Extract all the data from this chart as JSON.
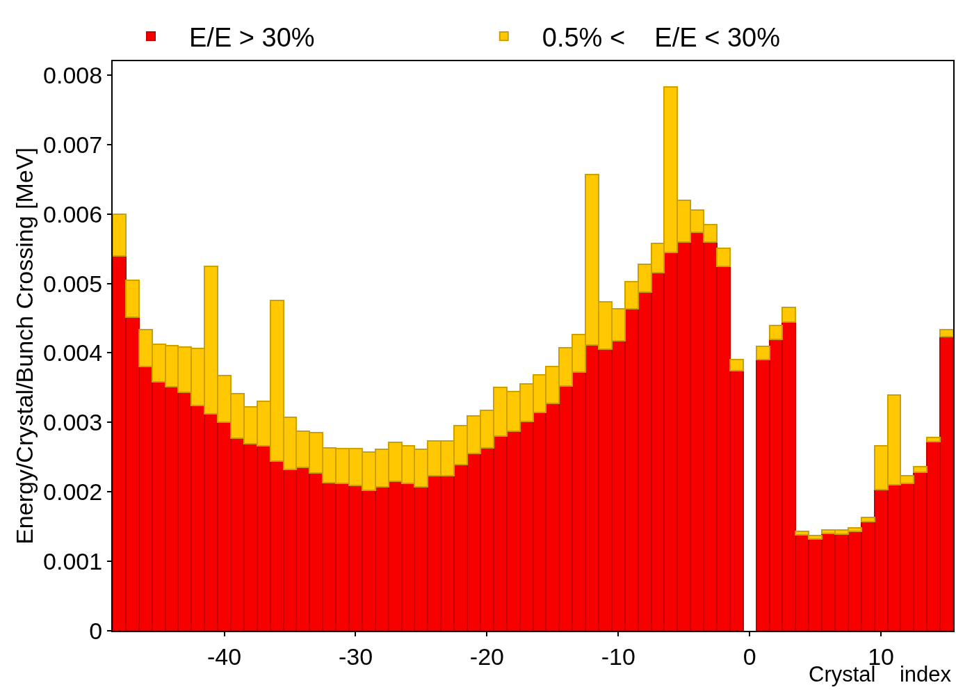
{
  "chart_data": {
    "type": "bar",
    "stacked": true,
    "xlabel": "Crystal    index",
    "ylabel": "Energy/Crystal/Bunch Crossing [MeV]",
    "x": [
      -48,
      -47,
      -46,
      -45,
      -44,
      -43,
      -42,
      -41,
      -40,
      -39,
      -38,
      -37,
      -36,
      -35,
      -34,
      -33,
      -32,
      -31,
      -30,
      -29,
      -28,
      -27,
      -26,
      -25,
      -24,
      -23,
      -22,
      -21,
      -20,
      -19,
      -18,
      -17,
      -16,
      -15,
      -14,
      -13,
      -12,
      -11,
      -10,
      -9,
      -8,
      -7,
      -6,
      -5,
      -4,
      -3,
      -2,
      -1,
      0,
      1,
      2,
      3,
      4,
      5,
      6,
      7,
      8,
      9,
      10,
      11,
      12,
      13,
      14,
      15
    ],
    "series": [
      {
        "name": "E/E > 30%",
        "color": "#f70000",
        "values": [
          0.0054,
          0.00452,
          0.0038,
          0.00358,
          0.00351,
          0.00343,
          0.00324,
          0.00312,
          0.003,
          0.00277,
          0.00269,
          0.00266,
          0.00244,
          0.00232,
          0.00235,
          0.00227,
          0.00213,
          0.00212,
          0.00209,
          0.00202,
          0.00207,
          0.00215,
          0.00212,
          0.00207,
          0.00223,
          0.00223,
          0.00239,
          0.00255,
          0.00263,
          0.0028,
          0.00287,
          0.00301,
          0.00314,
          0.00327,
          0.00352,
          0.00372,
          0.00412,
          0.00405,
          0.00418,
          0.00464,
          0.00488,
          0.00516,
          0.00545,
          0.0056,
          0.00574,
          0.0056,
          0.00525,
          0.00374,
          null,
          0.0039,
          0.0042,
          0.00445,
          0.00138,
          0.00132,
          0.0014,
          0.00139,
          0.00143,
          0.00157,
          0.00203,
          0.0021,
          0.00212,
          0.00228,
          0.00272,
          0.00424
        ]
      },
      {
        "name": "0.5% <    E/E < 30%",
        "color": "#ffc800",
        "values": [
          0.0006,
          0.00053,
          0.00054,
          0.00055,
          0.0006,
          0.00066,
          0.00083,
          0.00213,
          0.00067,
          0.00064,
          0.00053,
          0.00064,
          0.00232,
          0.00075,
          0.00052,
          0.00058,
          0.0005,
          0.0005,
          0.00053,
          0.00055,
          0.00054,
          0.00056,
          0.00054,
          0.00054,
          0.0005,
          0.0005,
          0.00056,
          0.00054,
          0.00054,
          0.0007,
          0.00057,
          0.00054,
          0.00054,
          0.00053,
          0.00056,
          0.00055,
          0.00245,
          0.00069,
          0.00046,
          0.00039,
          0.0004,
          0.00042,
          0.00238,
          0.0006,
          0.00032,
          0.00025,
          0.00026,
          0.00016,
          null,
          0.0002,
          0.0002,
          0.00021,
          5e-05,
          5e-05,
          5e-05,
          6e-05,
          5e-05,
          6e-05,
          0.00063,
          0.00129,
          0.00011,
          8e-05,
          6e-05,
          0.0001
        ]
      }
    ],
    "xlim": [
      -48.5,
      15.5
    ],
    "xticks": [
      -40,
      -30,
      -20,
      -10,
      0,
      10
    ],
    "ylim": [
      0,
      0.0082
    ],
    "yticks": [
      0,
      0.001,
      0.002,
      0.003,
      0.004,
      0.005,
      0.006,
      0.007,
      0.008
    ],
    "grid": false,
    "legend": "top"
  }
}
